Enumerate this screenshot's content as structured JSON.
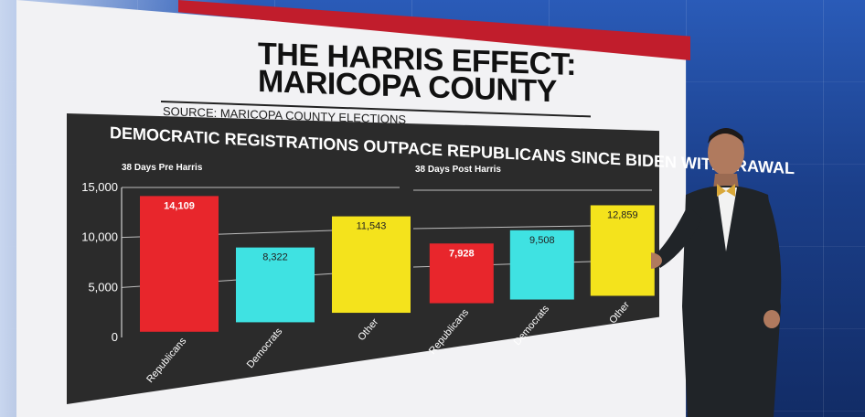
{
  "headline": {
    "line1": "THE HARRIS EFFECT:",
    "line2": "MARICOPA COUNTY"
  },
  "source": "SOURCE: MARICOPA COUNTY ELECTIONS",
  "subtitle": "DEMOCRATIC REGISTRATIONS OUTPACE REPUBLICANS SINCE BIDEN WITHDRAWAL",
  "colors": {
    "republicans": "#e8262c",
    "democrats": "#3fe2e2",
    "other": "#f4e31c",
    "panel": "#2b2b2b"
  },
  "chart_data": [
    {
      "type": "bar",
      "title": "38 Days Pre Harris",
      "categories": [
        "Republicans",
        "Democrats",
        "Other"
      ],
      "values": [
        14109,
        8322,
        11543
      ],
      "value_labels": [
        "14,109",
        "8,322",
        "11,543"
      ],
      "y_ticks": [
        "15,000",
        "10,000",
        "5,000",
        "0"
      ],
      "ylim": [
        0,
        15000
      ],
      "grid": true
    },
    {
      "type": "bar",
      "title": "38 Days Post Harris",
      "categories": [
        "Republicans",
        "Democrats",
        "Other"
      ],
      "values": [
        7928,
        9508,
        12859
      ],
      "value_labels": [
        "7,928",
        "9,508",
        "12,859"
      ],
      "ylim": [
        0,
        15000
      ],
      "grid": true
    }
  ]
}
